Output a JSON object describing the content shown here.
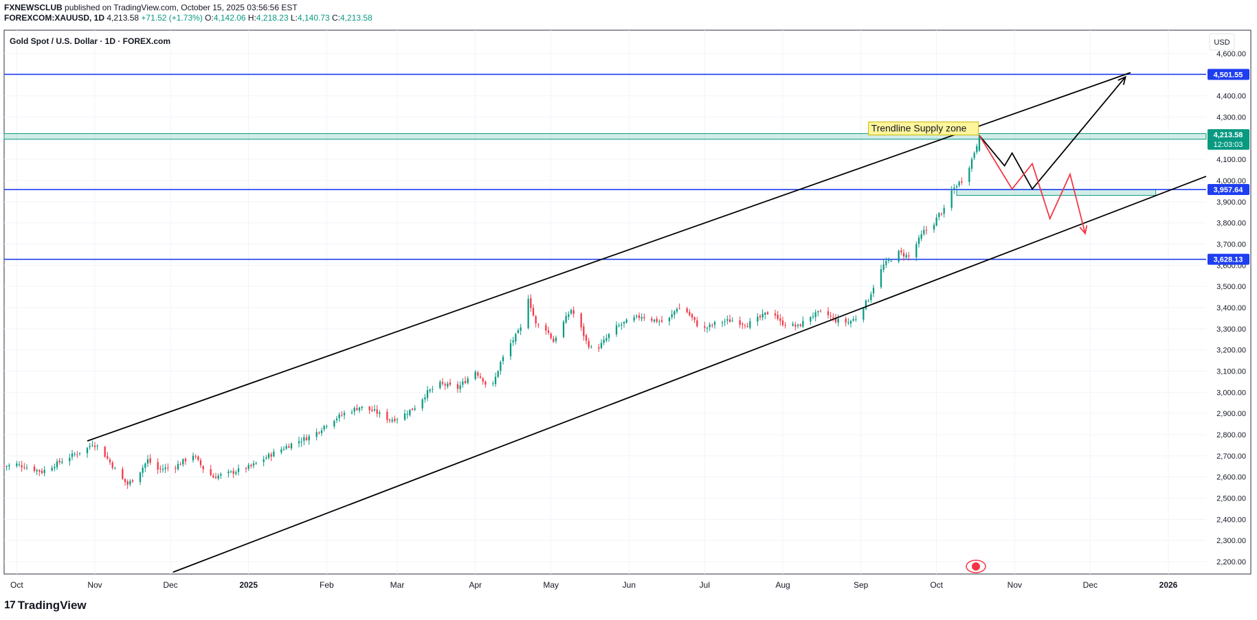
{
  "header": {
    "publisher": "FXNEWSCLUB",
    "published_text": "published on TradingView.com, October 15, 2025 03:56:56 EST",
    "symbol": "FOREXCOM:XAUUSD, 1D",
    "last": "4,213.58",
    "change": "+71.52 (+1.73%)",
    "o_label": "O:",
    "o_val": "4,142.06",
    "h_label": "H:",
    "h_val": "4,218.23",
    "l_label": "L:",
    "l_val": "4,140.73",
    "c_label": "C:",
    "c_val": "4,213.58"
  },
  "footer": {
    "brand": "TradingView",
    "logo": "17"
  },
  "chart_data": {
    "type": "candlestick",
    "title": "Gold Spot / U.S. Dollar · 1D · FOREX.com",
    "currency": "USD",
    "ylim": [
      2130,
      4640
    ],
    "yticks": [
      2200,
      2300,
      2400,
      2500,
      2600,
      2700,
      2800,
      2900,
      3000,
      3100,
      3200,
      3300,
      3400,
      3500,
      3600,
      3700,
      3800,
      3900,
      4000,
      4100,
      4200,
      4300,
      4400,
      4500,
      4600
    ],
    "ytick_labels": [
      "2,200.00",
      "2,300.00",
      "2,400.00",
      "2,500.00",
      "2,600.00",
      "2,700.00",
      "2,800.00",
      "2,900.00",
      "3,000.00",
      "3,100.00",
      "3,200.00",
      "3,300.00",
      "3,400.00",
      "3,500.00",
      "3,600.00",
      "3,700.00",
      "3,800.00",
      "3,900.00",
      "4,000.00",
      "4,100.00",
      "4,200.00",
      "4,300.00",
      "4,400.00",
      "4,500.00",
      "4,600.00"
    ],
    "x_range_days": [
      -5,
      472
    ],
    "xticks": [
      {
        "day": 0,
        "label": "Oct",
        "bold": false
      },
      {
        "day": 31,
        "label": "Nov",
        "bold": false
      },
      {
        "day": 61,
        "label": "Dec",
        "bold": false
      },
      {
        "day": 92,
        "label": "2025",
        "bold": true
      },
      {
        "day": 123,
        "label": "Feb",
        "bold": false
      },
      {
        "day": 151,
        "label": "Mar",
        "bold": false
      },
      {
        "day": 182,
        "label": "Apr",
        "bold": false
      },
      {
        "day": 212,
        "label": "May",
        "bold": false
      },
      {
        "day": 243,
        "label": "Jun",
        "bold": false
      },
      {
        "day": 273,
        "label": "Jul",
        "bold": false
      },
      {
        "day": 304,
        "label": "Aug",
        "bold": false
      },
      {
        "day": 335,
        "label": "Sep",
        "bold": false
      },
      {
        "day": 365,
        "label": "Oct",
        "bold": false
      },
      {
        "day": 396,
        "label": "Nov",
        "bold": false
      },
      {
        "day": 426,
        "label": "Dec",
        "bold": false
      },
      {
        "day": 457,
        "label": "2026",
        "bold": true
      }
    ],
    "close_anchors": [
      [
        -5,
        2650
      ],
      [
        0,
        2660
      ],
      [
        10,
        2625
      ],
      [
        20,
        2690
      ],
      [
        28,
        2735
      ],
      [
        30,
        2760
      ],
      [
        33,
        2735
      ],
      [
        37,
        2670
      ],
      [
        41,
        2600
      ],
      [
        44,
        2565
      ],
      [
        48,
        2610
      ],
      [
        52,
        2680
      ],
      [
        56,
        2635
      ],
      [
        63,
        2650
      ],
      [
        70,
        2705
      ],
      [
        74,
        2640
      ],
      [
        78,
        2600
      ],
      [
        85,
        2620
      ],
      [
        93,
        2650
      ],
      [
        100,
        2700
      ],
      [
        108,
        2750
      ],
      [
        112,
        2770
      ],
      [
        118,
        2800
      ],
      [
        124,
        2860
      ],
      [
        130,
        2900
      ],
      [
        136,
        2930
      ],
      [
        142,
        2910
      ],
      [
        148,
        2870
      ],
      [
        152,
        2880
      ],
      [
        158,
        2930
      ],
      [
        163,
        3000
      ],
      [
        168,
        3040
      ],
      [
        175,
        3020
      ],
      [
        182,
        3100
      ],
      [
        185,
        3060
      ],
      [
        188,
        3000
      ],
      [
        192,
        3140
      ],
      [
        196,
        3230
      ],
      [
        200,
        3300
      ],
      [
        203,
        3450
      ],
      [
        206,
        3320
      ],
      [
        210,
        3300
      ],
      [
        213,
        3240
      ],
      [
        216,
        3310
      ],
      [
        220,
        3390
      ],
      [
        223,
        3330
      ],
      [
        226,
        3240
      ],
      [
        229,
        3190
      ],
      [
        233,
        3240
      ],
      [
        237,
        3300
      ],
      [
        243,
        3340
      ],
      [
        248,
        3360
      ],
      [
        253,
        3340
      ],
      [
        258,
        3330
      ],
      [
        262,
        3400
      ],
      [
        266,
        3380
      ],
      [
        270,
        3320
      ],
      [
        273,
        3300
      ],
      [
        278,
        3330
      ],
      [
        284,
        3340
      ],
      [
        290,
        3320
      ],
      [
        296,
        3360
      ],
      [
        300,
        3390
      ],
      [
        303,
        3330
      ],
      [
        306,
        3320
      ],
      [
        310,
        3310
      ],
      [
        315,
        3360
      ],
      [
        320,
        3380
      ],
      [
        325,
        3340
      ],
      [
        330,
        3330
      ],
      [
        333,
        3350
      ],
      [
        335,
        3390
      ],
      [
        338,
        3440
      ],
      [
        341,
        3530
      ],
      [
        344,
        3600
      ],
      [
        347,
        3630
      ],
      [
        350,
        3660
      ],
      [
        354,
        3640
      ],
      [
        357,
        3700
      ],
      [
        360,
        3760
      ],
      [
        363,
        3780
      ],
      [
        366,
        3840
      ],
      [
        369,
        3870
      ],
      [
        371,
        3950
      ],
      [
        373,
        3980
      ],
      [
        375,
        4000
      ],
      [
        377,
        4040
      ],
      [
        379,
        4100
      ],
      [
        381,
        4170
      ],
      [
        382,
        4213.58
      ]
    ],
    "horizontal_levels": [
      {
        "value": 4501.55,
        "label": "4,501.55",
        "color": "#1e3ef0"
      },
      {
        "value": 3957.64,
        "label": "3,957.64",
        "color": "#1e3ef0"
      },
      {
        "value": 3628.13,
        "label": "3,628.13",
        "color": "#1e3ef0"
      }
    ],
    "last_price": {
      "value": 4213.58,
      "label": "4,213.58",
      "countdown": "12:03:03",
      "color": "#089981"
    },
    "zones": [
      {
        "name": "supply-zone",
        "from_day": -5,
        "to_day": 472,
        "low": 4195,
        "high": 4222,
        "color": "#089981"
      },
      {
        "name": "demand-zone",
        "from_day": 373,
        "to_day": 452,
        "low": 3930,
        "high": 3957,
        "color": "#089981"
      }
    ],
    "trendlines": [
      {
        "name": "channel-upper",
        "p1": [
          28,
          2770
        ],
        "p2": [
          442,
          4510
        ],
        "color": "#000000"
      },
      {
        "name": "channel-lower",
        "p1": [
          62,
          2150
        ],
        "p2": [
          472,
          4020
        ],
        "color": "#000000"
      }
    ],
    "projections": [
      {
        "name": "bullish-projection",
        "color": "#000000",
        "arrow": true,
        "points": [
          [
            382,
            4213
          ],
          [
            392,
            4070
          ],
          [
            395,
            4130
          ],
          [
            403,
            3960
          ],
          [
            440,
            4490
          ]
        ]
      },
      {
        "name": "bearish-projection",
        "color": "#f23645",
        "arrow": true,
        "points": [
          [
            382,
            4213
          ],
          [
            395,
            3960
          ],
          [
            403,
            4080
          ],
          [
            410,
            3820
          ],
          [
            418,
            4030
          ],
          [
            424,
            3750
          ]
        ]
      }
    ],
    "annotation": {
      "text": "Trendline Supply zone",
      "day": 338,
      "value": 4225
    }
  }
}
